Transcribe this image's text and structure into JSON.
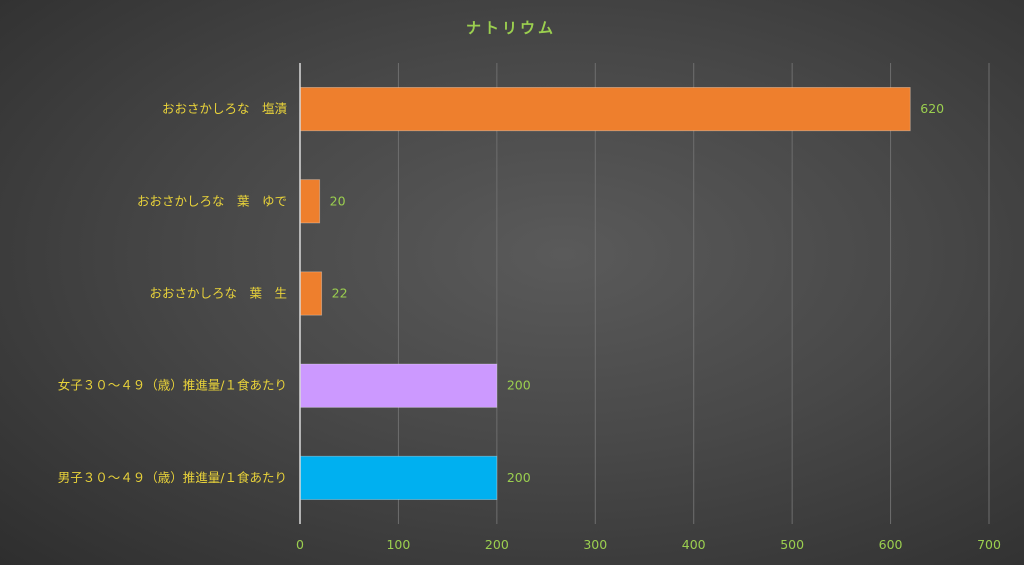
{
  "chart_data": {
    "type": "bar",
    "orientation": "horizontal",
    "title": "ナトリウム",
    "categories": [
      "おおさかしろな　塩漬",
      "おおさかしろな　葉　ゆで",
      "おおさかしろな　葉　生",
      "女子３０～４９（歳）推進量/１食あたり",
      "男子３０～４９（歳）推進量/１食あたり"
    ],
    "values": [
      620,
      20,
      22,
      200,
      200
    ],
    "bar_colors": [
      "#ee7f2d",
      "#ee7f2d",
      "#ee7f2d",
      "#cc99ff",
      "#00b0f0"
    ],
    "xlim": [
      0,
      700
    ],
    "xticks": [
      0,
      100,
      200,
      300,
      400,
      500,
      600,
      700
    ],
    "xlabel": "",
    "ylabel": "",
    "grid": true,
    "legend": "none",
    "data_labels": true
  }
}
